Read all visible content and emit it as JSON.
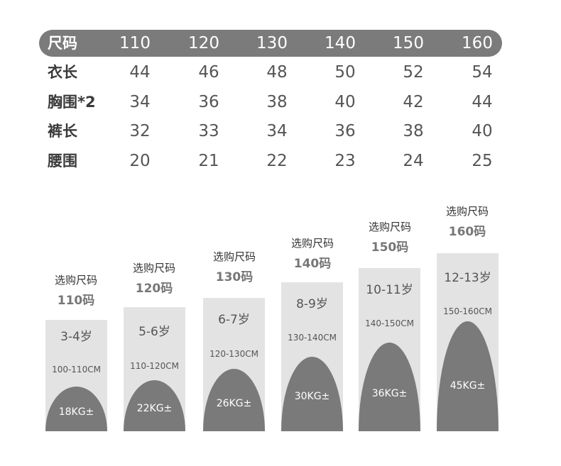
{
  "table": {
    "header_label": "尺码",
    "sizes": [
      "110",
      "120",
      "130",
      "140",
      "150",
      "160"
    ],
    "rows": [
      {
        "label": "衣长",
        "values": [
          "44",
          "46",
          "48",
          "50",
          "52",
          "54"
        ]
      },
      {
        "label": "胸围*2",
        "values": [
          "34",
          "36",
          "38",
          "40",
          "42",
          "44"
        ]
      },
      {
        "label": "裤长",
        "values": [
          "32",
          "33",
          "34",
          "36",
          "38",
          "40"
        ]
      },
      {
        "label": "腰围",
        "values": [
          "20",
          "21",
          "22",
          "23",
          "24",
          "25"
        ]
      }
    ]
  },
  "cards": [
    {
      "title": "选购尺码",
      "size": "110码",
      "age": "3-4岁",
      "height": "100-110CM",
      "weight": "18KG±"
    },
    {
      "title": "选购尺码",
      "size": "120码",
      "age": "5-6岁",
      "height": "110-120CM",
      "weight": "22KG±"
    },
    {
      "title": "选购尺码",
      "size": "130码",
      "age": "6-7岁",
      "height": "120-130CM",
      "weight": "26KG±"
    },
    {
      "title": "选购尺码",
      "size": "140码",
      "age": "8-9岁",
      "height": "130-140CM",
      "weight": "30KG±"
    },
    {
      "title": "选购尺码",
      "size": "150码",
      "age": "10-11岁",
      "height": "140-150CM",
      "weight": "36KG±"
    },
    {
      "title": "选购尺码",
      "size": "160码",
      "age": "12-13岁",
      "height": "150-160CM",
      "weight": "45KG±"
    }
  ],
  "colors": {
    "header_bar": "#7b7b7b",
    "card_bg": "#e3e3e3",
    "card_dome": "#7a7a7a"
  }
}
